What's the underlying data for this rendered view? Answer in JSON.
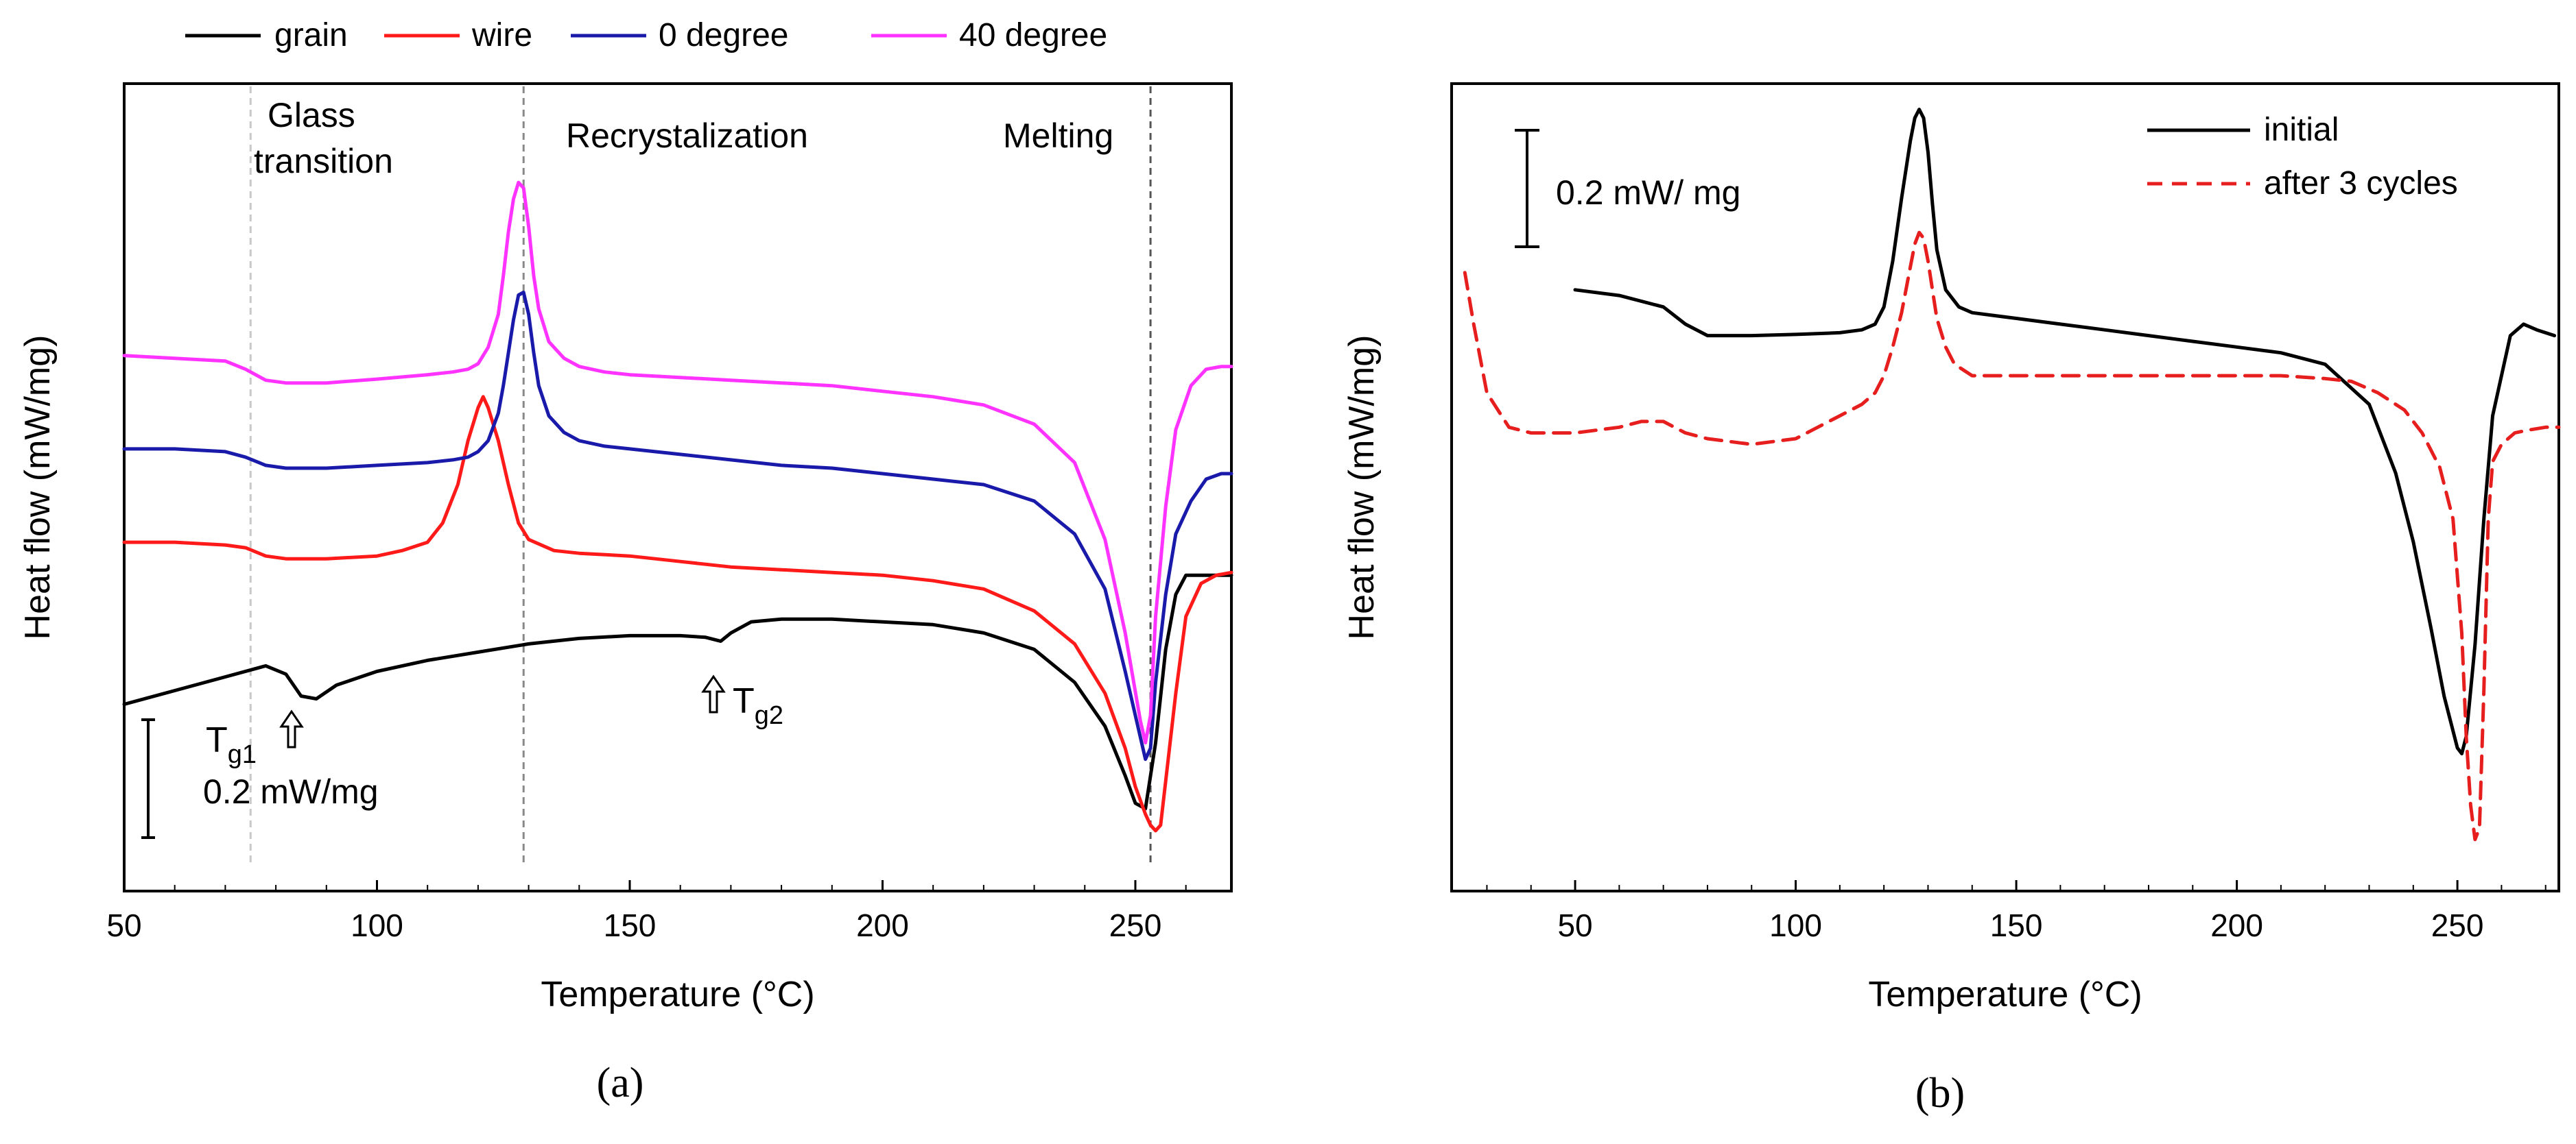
{
  "chart_data": [
    {
      "panel": "(a)",
      "type": "line",
      "xlabel": "Temperature (°C)",
      "ylabel": "Heat flow (mW/mg)",
      "xlim": [
        50,
        269
      ],
      "ylim": [
        -0.92,
        0.55
      ],
      "xticks": [
        50,
        100,
        150,
        200,
        250
      ],
      "y_axis_tick_labels": false,
      "grid": false,
      "legend": {
        "position": "top",
        "entries": [
          "grain",
          "wire",
          "0 degree",
          "40 degree"
        ],
        "colors": [
          "#000000",
          "#ff1a1a",
          "#1a1aaa",
          "#ff33ff"
        ]
      },
      "region_labels": [
        {
          "text_lines": [
            "Glass",
            "transition"
          ],
          "x": 78
        },
        {
          "text_lines": [
            "Recrystalization"
          ],
          "x": 145
        },
        {
          "text_lines": [
            "Melting"
          ],
          "x": 240
        }
      ],
      "dashed_lines_x": [
        75,
        129,
        253
      ],
      "scale_bar": {
        "label": "0.2 mW/mg",
        "length": 0.2
      },
      "annotations": [
        {
          "base": "T",
          "sub": "g1",
          "x": 83
        },
        {
          "base": "T",
          "sub": "g2",
          "x": 168
        }
      ],
      "series": [
        {
          "name": "grain",
          "color": "#000000",
          "x": [
            50,
            60,
            70,
            78,
            82,
            85,
            88,
            92,
            100,
            110,
            120,
            130,
            140,
            150,
            160,
            165,
            168,
            170,
            174,
            180,
            190,
            200,
            210,
            220,
            230,
            238,
            244,
            248,
            250,
            252,
            254,
            256,
            258,
            260,
            263,
            266,
            269
          ],
          "y": [
            -0.58,
            -0.555,
            -0.53,
            -0.51,
            -0.525,
            -0.565,
            -0.57,
            -0.545,
            -0.52,
            -0.5,
            -0.485,
            -0.47,
            -0.46,
            -0.455,
            -0.455,
            -0.458,
            -0.465,
            -0.45,
            -0.43,
            -0.425,
            -0.425,
            -0.43,
            -0.435,
            -0.45,
            -0.48,
            -0.54,
            -0.62,
            -0.71,
            -0.76,
            -0.77,
            -0.65,
            -0.48,
            -0.38,
            -0.345,
            -0.345,
            -0.345,
            -0.345
          ]
        },
        {
          "name": "wire",
          "color": "#ff1a1a",
          "x": [
            50,
            60,
            70,
            74,
            78,
            82,
            90,
            100,
            105,
            110,
            113,
            116,
            118,
            120,
            121,
            122,
            124,
            126,
            128,
            130,
            135,
            140,
            150,
            160,
            170,
            180,
            190,
            200,
            210,
            220,
            230,
            238,
            244,
            248,
            250,
            252,
            253,
            254,
            255,
            256,
            258,
            260,
            263,
            266,
            269
          ],
          "y": [
            -0.285,
            -0.285,
            -0.29,
            -0.295,
            -0.31,
            -0.315,
            -0.315,
            -0.31,
            -0.3,
            -0.285,
            -0.25,
            -0.18,
            -0.1,
            -0.04,
            -0.02,
            -0.04,
            -0.1,
            -0.18,
            -0.25,
            -0.28,
            -0.3,
            -0.305,
            -0.31,
            -0.32,
            -0.33,
            -0.335,
            -0.34,
            -0.345,
            -0.355,
            -0.37,
            -0.41,
            -0.47,
            -0.56,
            -0.66,
            -0.73,
            -0.78,
            -0.8,
            -0.81,
            -0.8,
            -0.72,
            -0.56,
            -0.42,
            -0.36,
            -0.345,
            -0.34
          ]
        },
        {
          "name": "0 degree",
          "color": "#1a1aaa",
          "x": [
            50,
            60,
            70,
            74,
            78,
            82,
            90,
            100,
            110,
            115,
            118,
            120,
            122,
            124,
            125,
            126,
            127,
            128,
            129,
            130,
            131,
            132,
            134,
            137,
            140,
            145,
            150,
            160,
            170,
            180,
            190,
            200,
            210,
            220,
            230,
            238,
            244,
            248,
            251,
            252,
            253,
            254,
            256,
            258,
            261,
            264,
            267,
            269
          ],
          "y": [
            -0.115,
            -0.115,
            -0.12,
            -0.13,
            -0.145,
            -0.15,
            -0.15,
            -0.145,
            -0.14,
            -0.135,
            -0.13,
            -0.12,
            -0.1,
            -0.05,
            -0.0,
            0.06,
            0.12,
            0.165,
            0.17,
            0.13,
            0.06,
            0.0,
            -0.055,
            -0.085,
            -0.1,
            -0.11,
            -0.115,
            -0.125,
            -0.135,
            -0.145,
            -0.15,
            -0.16,
            -0.17,
            -0.18,
            -0.21,
            -0.27,
            -0.37,
            -0.52,
            -0.64,
            -0.68,
            -0.66,
            -0.54,
            -0.38,
            -0.27,
            -0.21,
            -0.17,
            -0.16,
            -0.16
          ]
        },
        {
          "name": "40 degree",
          "color": "#ff33ff",
          "x": [
            50,
            60,
            70,
            74,
            78,
            82,
            90,
            100,
            110,
            115,
            118,
            120,
            122,
            124,
            125,
            126,
            127,
            128,
            129,
            130,
            131,
            132,
            134,
            137,
            140,
            145,
            150,
            160,
            170,
            180,
            190,
            200,
            210,
            220,
            230,
            238,
            244,
            248,
            251,
            252,
            253,
            254,
            256,
            258,
            261,
            264,
            267,
            269
          ],
          "y": [
            0.055,
            0.05,
            0.045,
            0.03,
            0.01,
            0.005,
            0.005,
            0.012,
            0.02,
            0.025,
            0.03,
            0.04,
            0.07,
            0.13,
            0.2,
            0.28,
            0.34,
            0.37,
            0.36,
            0.29,
            0.2,
            0.14,
            0.08,
            0.05,
            0.035,
            0.025,
            0.02,
            0.015,
            0.01,
            0.005,
            0.0,
            -0.01,
            -0.02,
            -0.035,
            -0.07,
            -0.14,
            -0.28,
            -0.45,
            -0.61,
            -0.65,
            -0.6,
            -0.42,
            -0.22,
            -0.08,
            0.0,
            0.03,
            0.035,
            0.035
          ]
        }
      ]
    },
    {
      "panel": "(b)",
      "type": "line",
      "xlabel": "Temperature (°C)",
      "ylabel": "Heat flow (mW/mg)",
      "xlim": [
        22,
        273
      ],
      "ylim": [
        -1.05,
        0.36
      ],
      "xticks": [
        50,
        100,
        150,
        200,
        250
      ],
      "y_axis_tick_labels": false,
      "grid": false,
      "legend": {
        "position": "top-right",
        "entries": [
          "initial",
          "after 3 cycles"
        ],
        "colors": [
          "#000000",
          "#e61e1e"
        ],
        "styles": [
          "solid",
          "dashed"
        ]
      },
      "scale_bar": {
        "label": "0.2 mW/ mg",
        "length": 0.2
      },
      "series": [
        {
          "name": "initial",
          "color": "#000000",
          "dash": "solid",
          "x": [
            50,
            60,
            70,
            75,
            80,
            90,
            100,
            110,
            115,
            118,
            120,
            122,
            124,
            126,
            127,
            128,
            129,
            130,
            131,
            132,
            134,
            137,
            140,
            145,
            150,
            160,
            170,
            180,
            190,
            200,
            210,
            220,
            230,
            236,
            240,
            244,
            247,
            250,
            251,
            252,
            254,
            256,
            258,
            262,
            265,
            268,
            272
          ],
          "y": [
            0.0,
            -0.01,
            -0.03,
            -0.06,
            -0.08,
            -0.08,
            -0.078,
            -0.075,
            -0.07,
            -0.06,
            -0.03,
            0.05,
            0.16,
            0.26,
            0.3,
            0.315,
            0.3,
            0.24,
            0.15,
            0.07,
            0.0,
            -0.03,
            -0.04,
            -0.045,
            -0.05,
            -0.06,
            -0.07,
            -0.08,
            -0.09,
            -0.1,
            -0.11,
            -0.13,
            -0.2,
            -0.32,
            -0.44,
            -0.59,
            -0.71,
            -0.8,
            -0.81,
            -0.78,
            -0.62,
            -0.4,
            -0.22,
            -0.08,
            -0.06,
            -0.07,
            -0.08
          ]
        },
        {
          "name": "after 3 cycles",
          "color": "#e61e1e",
          "dash": "dashed",
          "x": [
            25,
            27,
            30,
            35,
            40,
            50,
            60,
            65,
            70,
            75,
            80,
            90,
            100,
            105,
            110,
            115,
            118,
            120,
            122,
            124,
            126,
            127,
            128,
            129,
            130,
            131,
            132,
            134,
            136,
            140,
            150,
            160,
            170,
            180,
            190,
            200,
            210,
            220,
            226,
            232,
            238,
            242,
            246,
            249,
            251,
            252,
            253,
            254,
            255,
            256,
            257,
            258,
            260,
            263,
            266,
            270,
            273
          ],
          "y": [
            0.03,
            -0.06,
            -0.18,
            -0.24,
            -0.25,
            -0.25,
            -0.24,
            -0.23,
            -0.23,
            -0.25,
            -0.26,
            -0.27,
            -0.26,
            -0.24,
            -0.22,
            -0.2,
            -0.18,
            -0.15,
            -0.1,
            -0.04,
            0.04,
            0.08,
            0.1,
            0.09,
            0.05,
            0.0,
            -0.05,
            -0.1,
            -0.13,
            -0.15,
            -0.15,
            -0.15,
            -0.15,
            -0.15,
            -0.15,
            -0.15,
            -0.15,
            -0.155,
            -0.16,
            -0.18,
            -0.21,
            -0.25,
            -0.31,
            -0.4,
            -0.6,
            -0.78,
            -0.9,
            -0.96,
            -0.94,
            -0.7,
            -0.4,
            -0.3,
            -0.27,
            -0.25,
            -0.245,
            -0.24,
            -0.24
          ]
        }
      ]
    }
  ]
}
